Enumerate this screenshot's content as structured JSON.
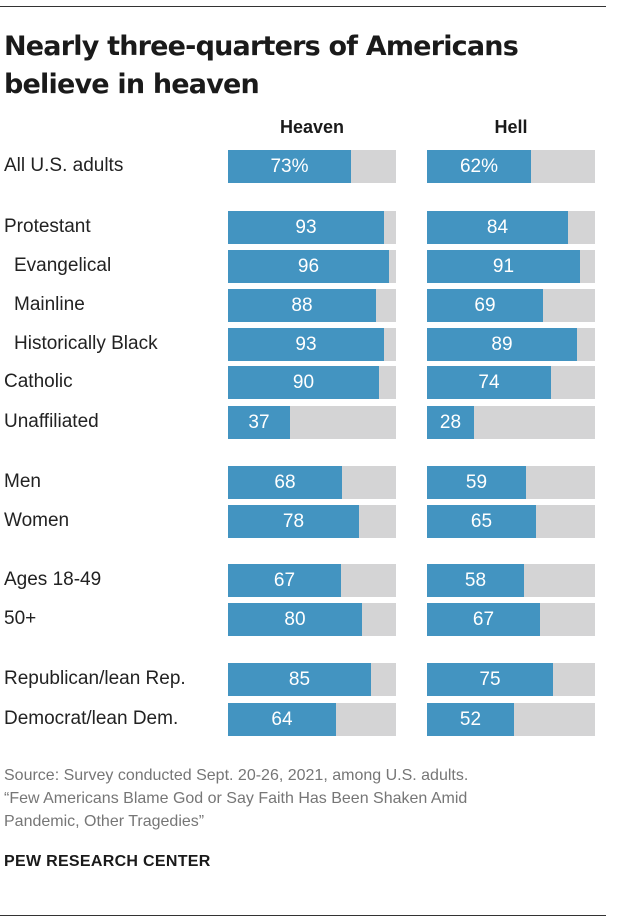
{
  "title": "Nearly three-quarters of Americans believe in heaven",
  "chart_data": {
    "type": "bar",
    "orientation": "horizontal",
    "unit": "%",
    "xlim": [
      0,
      100
    ],
    "categories": [
      "All U.S. adults",
      "Protestant",
      "Evangelical",
      "Mainline",
      "Historically Black",
      "Catholic",
      "Unaffiliated",
      "Men",
      "Women",
      "Ages 18-49",
      "50+",
      "Republican/lean Rep.",
      "Democrat/lean Dem."
    ],
    "subcategories": [
      "Evangelical",
      "Mainline",
      "Historically Black"
    ],
    "groups": [
      [
        0
      ],
      [
        1,
        2,
        3,
        4,
        5,
        6
      ],
      [
        7,
        8
      ],
      [
        9,
        10
      ],
      [
        11,
        12
      ]
    ],
    "series": [
      {
        "name": "Heaven",
        "values": [
          73,
          93,
          96,
          88,
          93,
          90,
          37,
          68,
          78,
          67,
          80,
          85,
          64
        ],
        "labels": [
          "73%",
          "93",
          "96",
          "88",
          "93",
          "90",
          "37",
          "68",
          "78",
          "67",
          "80",
          "85",
          "64"
        ]
      },
      {
        "name": "Hell",
        "values": [
          62,
          84,
          91,
          69,
          89,
          74,
          28,
          59,
          65,
          58,
          67,
          75,
          52
        ],
        "labels": [
          "62%",
          "84",
          "91",
          "69",
          "89",
          "74",
          "28",
          "59",
          "65",
          "58",
          "67",
          "75",
          "52"
        ]
      }
    ]
  },
  "source": {
    "lines": [
      "Source: Survey conducted Sept. 20-26, 2021, among U.S. adults.",
      "“Few Americans Blame God or Say Faith Has Been Shaken Amid",
      "Pandemic, Other Tragedies”"
    ]
  },
  "brand": "PEW RESEARCH CENTER",
  "colors": {
    "bar": "#4394c1",
    "track": "#d4d4d5",
    "label": "#ffffff",
    "source": "#767676"
  }
}
